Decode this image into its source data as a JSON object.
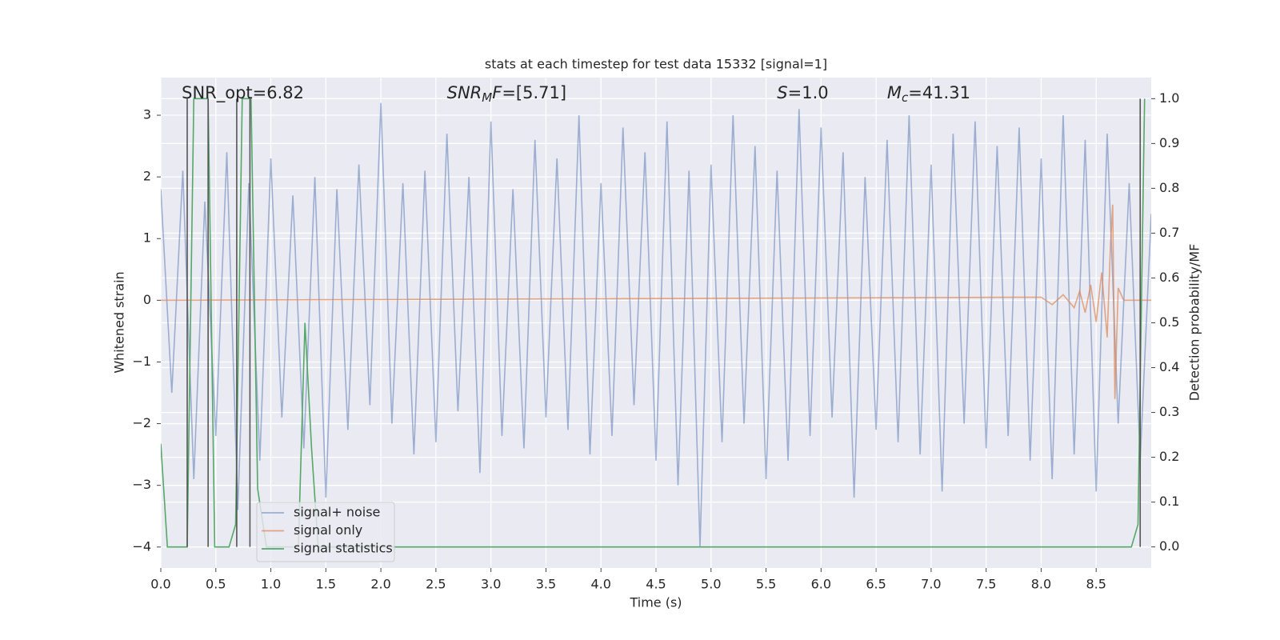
{
  "chart_data": {
    "type": "line",
    "title": "stats at each timestep for test data 15332 [signal=1]",
    "x_label": "Time (s)",
    "y_label": "Whitened strain",
    "y2_label": "Detection probability/MF",
    "xlim": [
      0,
      9.0
    ],
    "ylim": [
      -4.34,
      3.61
    ],
    "y2lim": [
      -0.047,
      1.047
    ],
    "xticks": [
      {
        "value": 0,
        "label": "0.0"
      },
      0.5,
      {
        "value": 1,
        "label": "1.0"
      },
      1.5,
      {
        "value": 2,
        "label": "2.0"
      },
      2.5,
      {
        "value": 3,
        "label": "3.0"
      },
      3.5,
      {
        "value": 4,
        "label": "4.0"
      },
      4.5,
      {
        "value": 5,
        "label": "5.0"
      },
      5.5,
      {
        "value": 6,
        "label": "6.0"
      },
      6.5,
      {
        "value": 7,
        "label": "7.0"
      },
      7.5,
      {
        "value": 8,
        "label": "8.0"
      },
      8.5
    ],
    "yticks": [
      {
        "value": -4,
        "label": "−4"
      },
      {
        "value": -3,
        "label": "−3"
      },
      {
        "value": -2,
        "label": "−2"
      },
      {
        "value": -1,
        "label": "−1"
      },
      0,
      1,
      2,
      3
    ],
    "y2ticks": [
      {
        "value": 0,
        "label": "0.0"
      },
      0.1,
      0.2,
      0.3,
      0.4,
      0.5,
      0.6,
      0.7,
      0.8,
      0.9,
      {
        "value": 1,
        "label": "1.0"
      }
    ],
    "grid": true,
    "legend_loc": "lower left",
    "annotations": [
      [
        {
          "text": "SNR_opt=6.82",
          "style": "normal"
        }
      ],
      [
        {
          "text": "SNR",
          "style": "italic"
        },
        {
          "text": "M",
          "style": "sub"
        },
        {
          "text": "F",
          "style": "italic"
        },
        {
          "text": "=[5.71]",
          "style": "normal"
        }
      ],
      [
        {
          "text": "S",
          "style": "italic"
        },
        {
          "text": "=1.0",
          "style": "normal"
        }
      ],
      [
        {
          "text": "M",
          "style": "italic"
        },
        {
          "text": "c",
          "style": "sub"
        },
        {
          "text": "=41.31",
          "style": "normal"
        }
      ]
    ],
    "annotation_x": [
      0.19,
      2.6,
      5.6,
      6.6
    ],
    "markers_x": [
      0.24,
      0.43,
      0.69,
      0.81,
      8.9
    ],
    "marker_color": "#555555",
    "series": [
      {
        "name": "signal+ noise",
        "color": "#4c72b0",
        "opacity": 0.5,
        "x": [
          0.0,
          0.1,
          0.2,
          0.3,
          0.4,
          0.5,
          0.6,
          0.7,
          0.8,
          0.9,
          1.0,
          1.1,
          1.2,
          1.3,
          1.4,
          1.5,
          1.6,
          1.7,
          1.8,
          1.9,
          2.0,
          2.1,
          2.2,
          2.3,
          2.4,
          2.5,
          2.6,
          2.7,
          2.8,
          2.9,
          3.0,
          3.1,
          3.2,
          3.3,
          3.4,
          3.5,
          3.6,
          3.7,
          3.8,
          3.9,
          4.0,
          4.1,
          4.2,
          4.3,
          4.4,
          4.5,
          4.6,
          4.7,
          4.8,
          4.9,
          5.0,
          5.1,
          5.2,
          5.3,
          5.4,
          5.5,
          5.6,
          5.7,
          5.8,
          5.9,
          6.0,
          6.1,
          6.2,
          6.3,
          6.4,
          6.5,
          6.6,
          6.7,
          6.8,
          6.9,
          7.0,
          7.1,
          7.2,
          7.3,
          7.4,
          7.5,
          7.6,
          7.7,
          7.8,
          7.9,
          8.0,
          8.1,
          8.2,
          8.3,
          8.4,
          8.5,
          8.6,
          8.7,
          8.8,
          8.9,
          9.0
        ],
        "values": [
          1.8,
          -1.5,
          2.1,
          -2.9,
          1.6,
          -2.2,
          2.4,
          -3.4,
          1.9,
          -2.6,
          2.3,
          -1.9,
          1.7,
          -2.4,
          2.0,
          -3.2,
          1.8,
          -2.1,
          2.2,
          -1.7,
          3.2,
          -2.0,
          1.9,
          -2.5,
          2.1,
          -2.3,
          2.7,
          -1.8,
          2.0,
          -2.8,
          2.9,
          -2.2,
          1.8,
          -2.4,
          2.6,
          -1.9,
          2.3,
          -2.1,
          3.0,
          -2.5,
          1.9,
          -2.2,
          2.8,
          -1.7,
          2.4,
          -2.6,
          2.9,
          -3.0,
          2.1,
          -4.0,
          2.2,
          -2.3,
          3.0,
          -2.0,
          2.5,
          -2.9,
          2.1,
          -2.6,
          3.1,
          -2.2,
          2.8,
          -1.9,
          2.4,
          -3.2,
          2.0,
          -2.1,
          2.6,
          -2.3,
          3.0,
          -2.5,
          2.2,
          -3.1,
          2.7,
          -2.0,
          2.9,
          -2.4,
          2.5,
          -2.2,
          2.8,
          -2.6,
          2.3,
          -2.9,
          3.0,
          -2.5,
          2.6,
          -3.1,
          2.7,
          -2.0,
          1.9,
          -2.6,
          1.4
        ]
      },
      {
        "name": "signal only",
        "color": "#dd8452",
        "opacity": 0.7,
        "x": [
          0,
          8.0,
          8.1,
          8.2,
          8.3,
          8.35,
          8.4,
          8.45,
          8.5,
          8.55,
          8.6,
          8.63,
          8.65,
          8.67,
          8.7,
          8.75,
          9.0
        ],
        "values": [
          0,
          0.05,
          -0.07,
          0.09,
          -0.12,
          0.15,
          -0.2,
          0.25,
          -0.35,
          0.45,
          -0.6,
          0.9,
          1.55,
          -1.6,
          0.2,
          0,
          0
        ]
      },
      {
        "name": "signal statistics",
        "color": "#55a868",
        "opacity": 1,
        "axis": "y2",
        "x": [
          0,
          0.06,
          0.24,
          0.3,
          0.43,
          0.49,
          0.62,
          0.68,
          0.74,
          0.82,
          0.88,
          0.96,
          1.25,
          1.31,
          1.37,
          1.43,
          8.82,
          8.88,
          8.94
        ],
        "values": [
          0.23,
          0,
          0,
          1,
          1,
          0,
          0,
          0.05,
          1,
          1,
          0.13,
          0,
          0,
          0.5,
          0.22,
          0,
          0,
          0.05,
          1
        ]
      }
    ]
  }
}
